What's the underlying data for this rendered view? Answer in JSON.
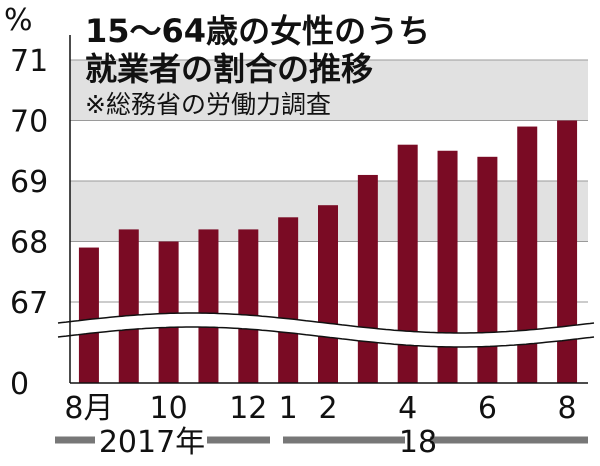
{
  "chart_data": {
    "type": "bar",
    "title_lines": [
      "15～64歳の女性のうち",
      "就業者の割合の推移"
    ],
    "note": "※総務省の労働力調査",
    "ylabel": "%",
    "y_ticks": [
      "71",
      "70",
      "69",
      "68",
      "67",
      "0"
    ],
    "ylim": [
      66.5,
      71
    ],
    "axis_break": true,
    "categories": [
      "2017-08",
      "2017-09",
      "2017-10",
      "2017-11",
      "2017-12",
      "2018-01",
      "2018-02",
      "2018-03",
      "2018-04",
      "2018-05",
      "2018-06",
      "2018-07",
      "2018-08"
    ],
    "x_tick_labels": [
      "8月",
      "",
      "10",
      "",
      "12",
      "1",
      "2",
      "",
      "4",
      "",
      "6",
      "",
      "8"
    ],
    "year_labels": [
      "2017年",
      "18"
    ],
    "values": [
      67.9,
      68.2,
      68.0,
      68.2,
      68.2,
      68.4,
      68.6,
      69.1,
      69.6,
      69.5,
      69.4,
      69.9,
      70.0
    ],
    "bar_color": "#7a0b24",
    "band_color": "#e1e1e1"
  }
}
